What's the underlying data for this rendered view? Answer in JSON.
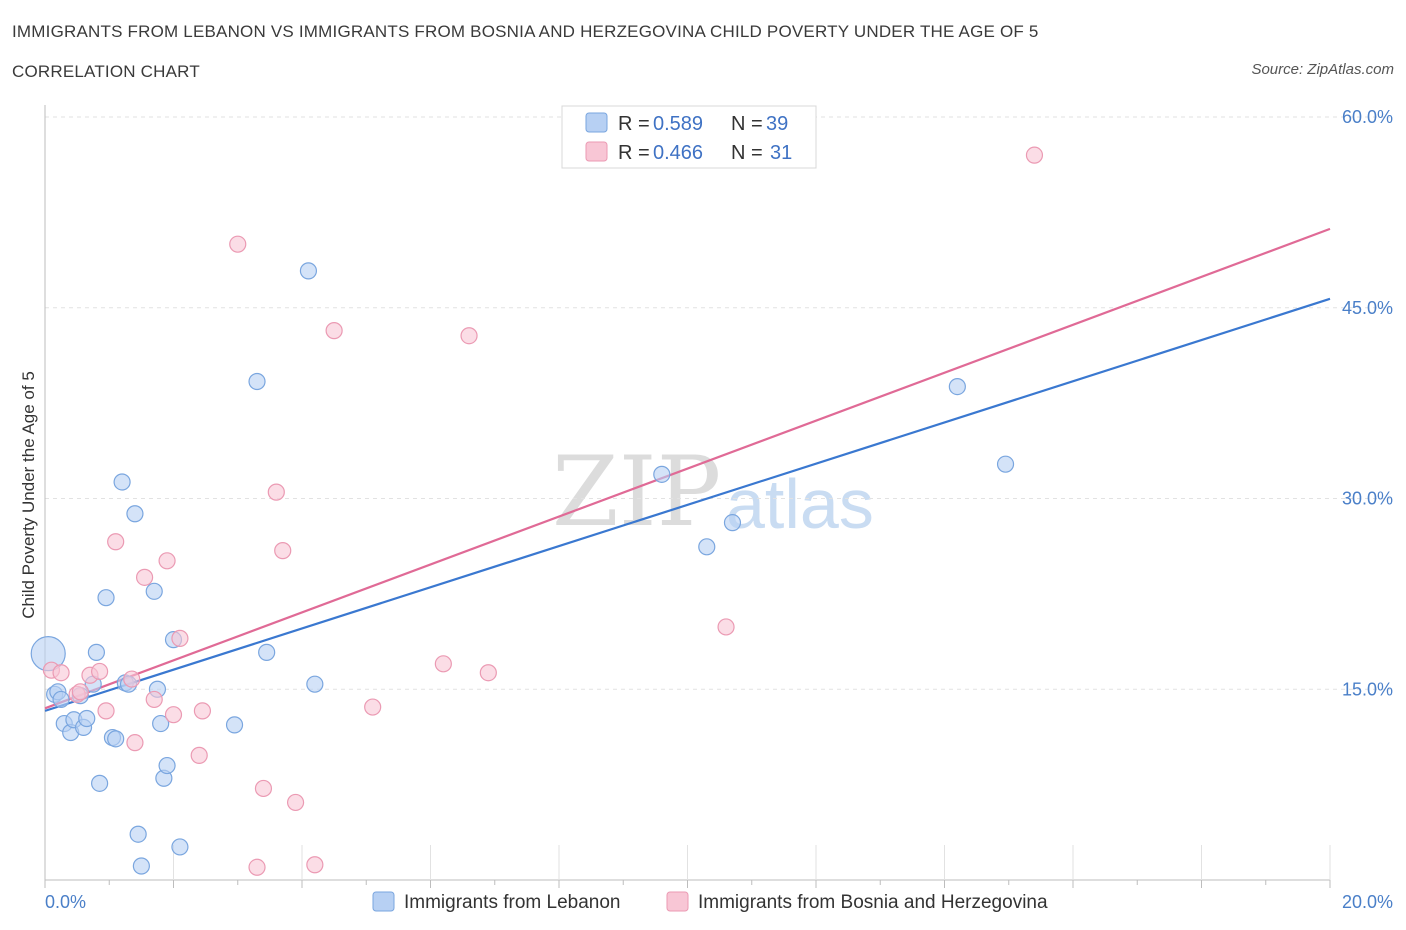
{
  "header": {
    "title": "IMMIGRANTS FROM LEBANON VS IMMIGRANTS FROM BOSNIA AND HERZEGOVINA CHILD POVERTY UNDER THE AGE OF 5",
    "subtitle": "CORRELATION CHART",
    "source": "Source: ZipAtlas.com"
  },
  "watermark": {
    "zip": "ZIP",
    "atlas": "atlas"
  },
  "legend": {
    "rows": [
      {
        "r_label": "R =",
        "r_value": "0.589",
        "n_label": "N =",
        "n_value": "39"
      },
      {
        "r_label": "R =",
        "r_value": "0.466",
        "n_label": "N =",
        "n_value": "31"
      }
    ]
  },
  "chart_data": {
    "type": "scatter",
    "title": "Immigrants from Lebanon vs Immigrants from Bosnia and Herzegovina Child Poverty Under the Age of 5",
    "xlabel": "",
    "ylabel": "Child Poverty Under the Age of 5",
    "xlim": [
      0,
      20
    ],
    "ylim": [
      0,
      60
    ],
    "x_tick_labels": [
      "0.0%",
      "20.0%"
    ],
    "y_ticks": [
      15,
      30,
      45,
      60
    ],
    "y_tick_labels": [
      "15.0%",
      "30.0%",
      "45.0%",
      "60.0%"
    ],
    "grid": true,
    "colors": {
      "lebanon_fill": "#b7d0f3",
      "lebanon_stroke": "#7aa6df",
      "lebanon_line": "#3a78d0",
      "bosnia_fill": "#f8c6d5",
      "bosnia_stroke": "#eb9ab3",
      "bosnia_line": "#e06a96",
      "axis_text": "#4a7fc8"
    },
    "series": [
      {
        "name": "Immigrants from Lebanon",
        "R": 0.589,
        "N": 39,
        "trend": {
          "x0": 0,
          "y0": 13.3,
          "x1": 20,
          "y1": 45.7
        },
        "points": [
          [
            0.05,
            17.8
          ],
          [
            0.15,
            14.6
          ],
          [
            0.2,
            14.8
          ],
          [
            0.25,
            14.2
          ],
          [
            0.3,
            12.3
          ],
          [
            0.4,
            11.6
          ],
          [
            0.45,
            12.6
          ],
          [
            0.55,
            14.5
          ],
          [
            0.6,
            12.0
          ],
          [
            0.65,
            12.7
          ],
          [
            0.75,
            15.4
          ],
          [
            0.8,
            17.9
          ],
          [
            0.85,
            7.6
          ],
          [
            0.95,
            22.2
          ],
          [
            1.05,
            11.2
          ],
          [
            1.1,
            11.1
          ],
          [
            1.2,
            31.3
          ],
          [
            1.25,
            15.5
          ],
          [
            1.3,
            15.4
          ],
          [
            1.4,
            28.8
          ],
          [
            1.45,
            3.6
          ],
          [
            1.5,
            1.1
          ],
          [
            1.7,
            22.7
          ],
          [
            1.75,
            15.0
          ],
          [
            1.8,
            12.3
          ],
          [
            1.85,
            8.0
          ],
          [
            1.9,
            9.0
          ],
          [
            2.0,
            18.9
          ],
          [
            2.1,
            2.6
          ],
          [
            2.95,
            12.2
          ],
          [
            3.3,
            39.2
          ],
          [
            3.45,
            17.9
          ],
          [
            4.1,
            47.9
          ],
          [
            4.2,
            15.4
          ],
          [
            9.6,
            31.9
          ],
          [
            10.3,
            26.2
          ],
          [
            10.7,
            28.1
          ],
          [
            14.2,
            38.8
          ],
          [
            14.95,
            32.7
          ]
        ]
      },
      {
        "name": "Immigrants from Bosnia and Herzegovina",
        "R": 0.466,
        "N": 31,
        "trend": {
          "x0": 0,
          "y0": 13.5,
          "x1": 20,
          "y1": 51.2
        },
        "points": [
          [
            0.1,
            16.5
          ],
          [
            0.25,
            16.3
          ],
          [
            0.5,
            14.6
          ],
          [
            0.55,
            14.8
          ],
          [
            0.7,
            16.1
          ],
          [
            0.85,
            16.4
          ],
          [
            0.95,
            13.3
          ],
          [
            1.1,
            26.6
          ],
          [
            1.35,
            15.8
          ],
          [
            1.4,
            10.8
          ],
          [
            1.55,
            23.8
          ],
          [
            1.7,
            14.2
          ],
          [
            1.9,
            25.1
          ],
          [
            2.0,
            13.0
          ],
          [
            2.1,
            19.0
          ],
          [
            2.4,
            9.8
          ],
          [
            2.45,
            13.3
          ],
          [
            3.0,
            50.0
          ],
          [
            3.3,
            1.0
          ],
          [
            3.4,
            7.2
          ],
          [
            3.6,
            30.5
          ],
          [
            3.7,
            25.9
          ],
          [
            3.9,
            6.1
          ],
          [
            4.2,
            1.2
          ],
          [
            4.5,
            43.2
          ],
          [
            5.1,
            13.6
          ],
          [
            6.2,
            17.0
          ],
          [
            6.6,
            42.8
          ],
          [
            6.9,
            16.3
          ],
          [
            10.6,
            19.9
          ],
          [
            15.4,
            57.0
          ]
        ]
      }
    ]
  },
  "bottom_legend": {
    "lebanon_label": "Immigrants from Lebanon",
    "bosnia_label": "Immigrants from Bosnia and Herzegovina"
  }
}
